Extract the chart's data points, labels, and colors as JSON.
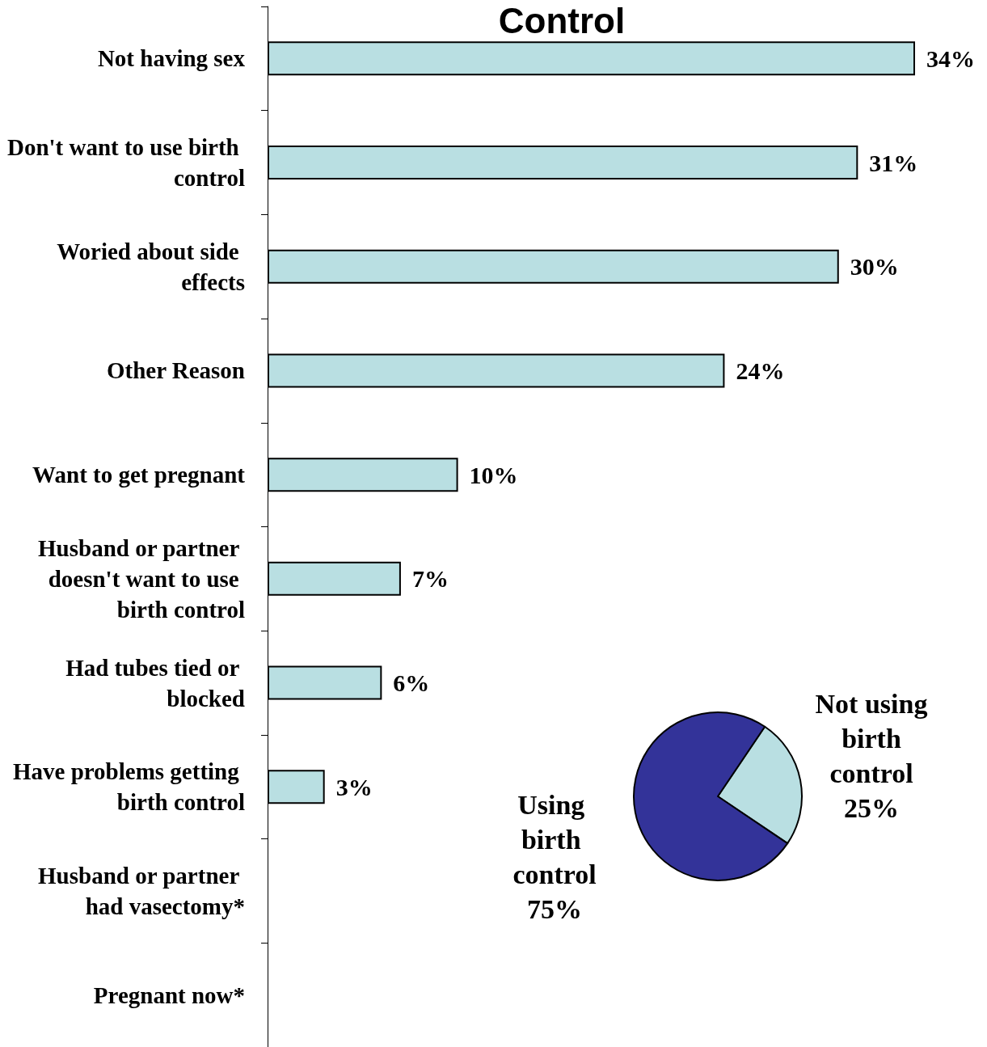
{
  "chart_data": [
    {
      "type": "bar",
      "title": "Control",
      "orientation": "horizontal",
      "categories": [
        "Not having sex",
        "Don't want to use birth control",
        "Woried about side effects",
        "Other Reason",
        "Want to get pregnant",
        "Husband or partner doesn't want to use birth control",
        "Had tubes tied or blocked",
        "Have problems getting birth control",
        "Husband or partner had vasectomy*",
        "Pregnant now*"
      ],
      "values": [
        34,
        31,
        30,
        24,
        10,
        7,
        6,
        3,
        null,
        null
      ],
      "value_labels": [
        "34%",
        "31%",
        "30%",
        "24%",
        "10%",
        "7%",
        "6%",
        "3%",
        null,
        null
      ],
      "color": "#b9dfe2"
    },
    {
      "type": "pie",
      "categories": [
        "Not using birth control",
        "Using birth control"
      ],
      "values": [
        25,
        75
      ],
      "value_labels": [
        "25%",
        "75%"
      ],
      "colors": [
        "#b9dfe2",
        "#333399"
      ]
    }
  ]
}
